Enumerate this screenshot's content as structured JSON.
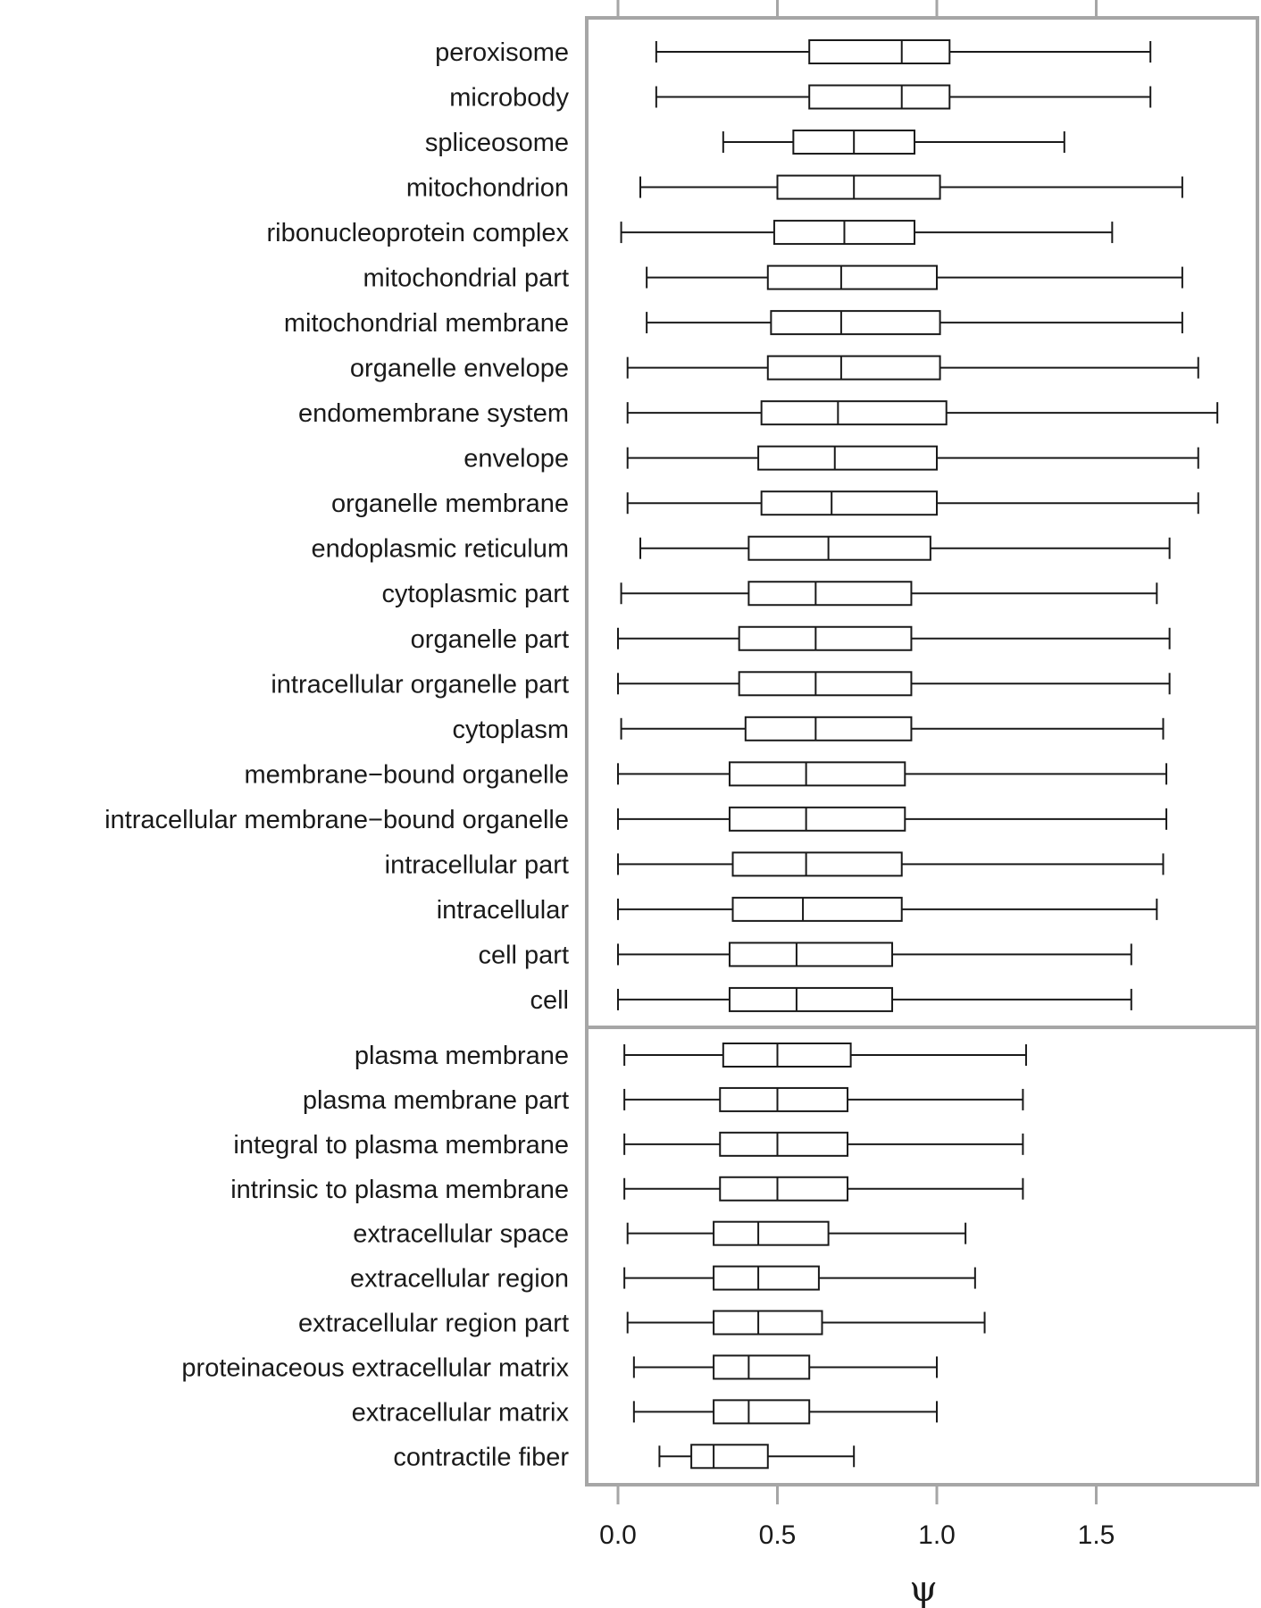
{
  "chart_data": {
    "type": "boxplot",
    "orientation": "horizontal",
    "xlabel": "ψ",
    "xlim": [
      -0.1,
      2.0
    ],
    "x_ticks": [
      0.0,
      0.5,
      1.0,
      1.5
    ],
    "x_tick_labels": [
      "0.0",
      "0.5",
      "1.0",
      "1.5"
    ],
    "ticks_top_and_bottom": true,
    "grid": false,
    "panels": [
      {
        "categories": [
          {
            "label": "peroxisome",
            "whisker_low": 0.12,
            "q1": 0.6,
            "median": 0.89,
            "q3": 1.04,
            "whisker_high": 1.67
          },
          {
            "label": "microbody",
            "whisker_low": 0.12,
            "q1": 0.6,
            "median": 0.89,
            "q3": 1.04,
            "whisker_high": 1.67
          },
          {
            "label": "spliceosome",
            "whisker_low": 0.33,
            "q1": 0.55,
            "median": 0.74,
            "q3": 0.93,
            "whisker_high": 1.4
          },
          {
            "label": "mitochondrion",
            "whisker_low": 0.07,
            "q1": 0.5,
            "median": 0.74,
            "q3": 1.01,
            "whisker_high": 1.77
          },
          {
            "label": "ribonucleoprotein complex",
            "whisker_low": 0.01,
            "q1": 0.49,
            "median": 0.71,
            "q3": 0.93,
            "whisker_high": 1.55
          },
          {
            "label": "mitochondrial part",
            "whisker_low": 0.09,
            "q1": 0.47,
            "median": 0.7,
            "q3": 1.0,
            "whisker_high": 1.77
          },
          {
            "label": "mitochondrial membrane",
            "whisker_low": 0.09,
            "q1": 0.48,
            "median": 0.7,
            "q3": 1.01,
            "whisker_high": 1.77
          },
          {
            "label": "organelle envelope",
            "whisker_low": 0.03,
            "q1": 0.47,
            "median": 0.7,
            "q3": 1.01,
            "whisker_high": 1.82
          },
          {
            "label": "endomembrane system",
            "whisker_low": 0.03,
            "q1": 0.45,
            "median": 0.69,
            "q3": 1.03,
            "whisker_high": 1.88
          },
          {
            "label": "envelope",
            "whisker_low": 0.03,
            "q1": 0.44,
            "median": 0.68,
            "q3": 1.0,
            "whisker_high": 1.82
          },
          {
            "label": "organelle membrane",
            "whisker_low": 0.03,
            "q1": 0.45,
            "median": 0.67,
            "q3": 1.0,
            "whisker_high": 1.82
          },
          {
            "label": "endoplasmic reticulum",
            "whisker_low": 0.07,
            "q1": 0.41,
            "median": 0.66,
            "q3": 0.98,
            "whisker_high": 1.73
          },
          {
            "label": "cytoplasmic part",
            "whisker_low": 0.01,
            "q1": 0.41,
            "median": 0.62,
            "q3": 0.92,
            "whisker_high": 1.69
          },
          {
            "label": "organelle part",
            "whisker_low": 0.0,
            "q1": 0.38,
            "median": 0.62,
            "q3": 0.92,
            "whisker_high": 1.73
          },
          {
            "label": "intracellular organelle part",
            "whisker_low": 0.0,
            "q1": 0.38,
            "median": 0.62,
            "q3": 0.92,
            "whisker_high": 1.73
          },
          {
            "label": "cytoplasm",
            "whisker_low": 0.01,
            "q1": 0.4,
            "median": 0.62,
            "q3": 0.92,
            "whisker_high": 1.71
          },
          {
            "label": "membrane−bound organelle",
            "whisker_low": 0.0,
            "q1": 0.35,
            "median": 0.59,
            "q3": 0.9,
            "whisker_high": 1.72
          },
          {
            "label": "intracellular membrane−bound organelle",
            "whisker_low": 0.0,
            "q1": 0.35,
            "median": 0.59,
            "q3": 0.9,
            "whisker_high": 1.72
          },
          {
            "label": "intracellular part",
            "whisker_low": 0.0,
            "q1": 0.36,
            "median": 0.59,
            "q3": 0.89,
            "whisker_high": 1.71
          },
          {
            "label": "intracellular",
            "whisker_low": 0.0,
            "q1": 0.36,
            "median": 0.58,
            "q3": 0.89,
            "whisker_high": 1.69
          },
          {
            "label": "cell part",
            "whisker_low": 0.0,
            "q1": 0.35,
            "median": 0.56,
            "q3": 0.86,
            "whisker_high": 1.61
          },
          {
            "label": "cell",
            "whisker_low": 0.0,
            "q1": 0.35,
            "median": 0.56,
            "q3": 0.86,
            "whisker_high": 1.61
          }
        ]
      },
      {
        "categories": [
          {
            "label": "plasma membrane",
            "whisker_low": 0.02,
            "q1": 0.33,
            "median": 0.5,
            "q3": 0.73,
            "whisker_high": 1.28
          },
          {
            "label": "plasma membrane part",
            "whisker_low": 0.02,
            "q1": 0.32,
            "median": 0.5,
            "q3": 0.72,
            "whisker_high": 1.27
          },
          {
            "label": "integral to plasma membrane",
            "whisker_low": 0.02,
            "q1": 0.32,
            "median": 0.5,
            "q3": 0.72,
            "whisker_high": 1.27
          },
          {
            "label": "intrinsic to plasma membrane",
            "whisker_low": 0.02,
            "q1": 0.32,
            "median": 0.5,
            "q3": 0.72,
            "whisker_high": 1.27
          },
          {
            "label": "extracellular space",
            "whisker_low": 0.03,
            "q1": 0.3,
            "median": 0.44,
            "q3": 0.66,
            "whisker_high": 1.09
          },
          {
            "label": "extracellular region",
            "whisker_low": 0.02,
            "q1": 0.3,
            "median": 0.44,
            "q3": 0.63,
            "whisker_high": 1.12
          },
          {
            "label": "extracellular region part",
            "whisker_low": 0.03,
            "q1": 0.3,
            "median": 0.44,
            "q3": 0.64,
            "whisker_high": 1.15
          },
          {
            "label": "proteinaceous extracellular matrix",
            "whisker_low": 0.05,
            "q1": 0.3,
            "median": 0.41,
            "q3": 0.6,
            "whisker_high": 1.0
          },
          {
            "label": "extracellular matrix",
            "whisker_low": 0.05,
            "q1": 0.3,
            "median": 0.41,
            "q3": 0.6,
            "whisker_high": 1.0
          },
          {
            "label": "contractile fiber",
            "whisker_low": 0.13,
            "q1": 0.23,
            "median": 0.3,
            "q3": 0.47,
            "whisker_high": 0.74
          }
        ]
      }
    ],
    "colors": {
      "frame": "#a6a6a6",
      "box_stroke": "#1a1a1a",
      "box_fill": "#ffffff",
      "text": "#1a1a1a"
    }
  }
}
